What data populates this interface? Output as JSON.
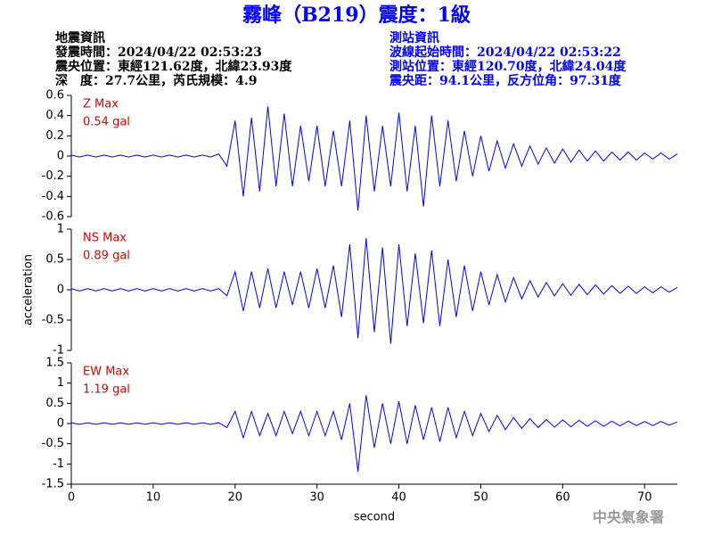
{
  "header": {
    "title": "霧峰（B219）震度：1級",
    "left": [
      "地震資訊",
      "發震時間：2024/04/22 02:53:23",
      "震央位置：東經121.62度，北緯23.93度",
      "深　度：27.7公里，芮氏規模：4.9"
    ],
    "right": [
      "測站資訊",
      "波線起始時間：2024/04/22 02:53:22",
      "測站位置：東經120.70度，北緯24.04度",
      "震央距：94.1公里，反方位角：97.31度"
    ],
    "footer": "中央氣象署"
  },
  "chart_data": [
    {
      "type": "line",
      "name": "Z Max",
      "annotation": "0.54 gal",
      "color": "#0000ff",
      "x": [
        0,
        1,
        2,
        3,
        4,
        5,
        6,
        7,
        8,
        9,
        10,
        11,
        12,
        13,
        14,
        15,
        16,
        17,
        18,
        19,
        20,
        21,
        22,
        23,
        24,
        25,
        26,
        27,
        28,
        29,
        30,
        31,
        32,
        33,
        34,
        35,
        36,
        37,
        38,
        39,
        40,
        41,
        42,
        43,
        44,
        45,
        46,
        47,
        48,
        49,
        50,
        51,
        52,
        53,
        54,
        55,
        56,
        57,
        58,
        59,
        60,
        61,
        62,
        63,
        64,
        65,
        66,
        67,
        68,
        69,
        70,
        71,
        72,
        73,
        74
      ],
      "values": [
        0.01,
        -0.01,
        0.01,
        -0.01,
        0.01,
        -0.01,
        0.01,
        -0.01,
        0.01,
        -0.01,
        0.01,
        -0.01,
        0.01,
        -0.01,
        0.01,
        -0.01,
        0.01,
        -0.01,
        0.02,
        -0.1,
        0.35,
        -0.4,
        0.38,
        -0.35,
        0.49,
        -0.3,
        0.42,
        -0.3,
        0.3,
        -0.25,
        0.3,
        -0.3,
        0.25,
        -0.3,
        0.35,
        -0.54,
        0.4,
        -0.35,
        0.3,
        -0.3,
        0.43,
        -0.35,
        0.3,
        -0.5,
        0.4,
        -0.3,
        0.35,
        -0.25,
        0.25,
        -0.2,
        0.2,
        -0.15,
        0.15,
        -0.12,
        0.12,
        -0.1,
        0.1,
        -0.08,
        0.08,
        -0.07,
        0.07,
        -0.06,
        0.06,
        -0.05,
        0.05,
        -0.05,
        0.04,
        -0.04,
        0.04,
        -0.04,
        0.03,
        -0.03,
        0.03,
        -0.03,
        0.02
      ],
      "xlim": [
        0,
        74
      ],
      "ylim": [
        -0.6,
        0.6
      ],
      "yticks": [
        -0.6,
        -0.4,
        -0.2,
        0,
        0.2,
        0.4,
        0.6
      ]
    },
    {
      "type": "line",
      "name": "NS Max",
      "annotation": "0.89 gal",
      "color": "#0000ff",
      "ylabel": "acceleration",
      "x": [
        0,
        1,
        2,
        3,
        4,
        5,
        6,
        7,
        8,
        9,
        10,
        11,
        12,
        13,
        14,
        15,
        16,
        17,
        18,
        19,
        20,
        21,
        22,
        23,
        24,
        25,
        26,
        27,
        28,
        29,
        30,
        31,
        32,
        33,
        34,
        35,
        36,
        37,
        38,
        39,
        40,
        41,
        42,
        43,
        44,
        45,
        46,
        47,
        48,
        49,
        50,
        51,
        52,
        53,
        54,
        55,
        56,
        57,
        58,
        59,
        60,
        61,
        62,
        63,
        64,
        65,
        66,
        67,
        68,
        69,
        70,
        71,
        72,
        73,
        74
      ],
      "values": [
        0.02,
        -0.02,
        0.02,
        -0.02,
        0.02,
        -0.02,
        0.02,
        -0.02,
        0.02,
        -0.02,
        0.02,
        -0.02,
        0.02,
        -0.02,
        0.02,
        -0.02,
        0.02,
        -0.02,
        0.02,
        -0.1,
        0.3,
        -0.35,
        0.3,
        -0.3,
        0.35,
        -0.3,
        0.3,
        -0.25,
        0.3,
        -0.3,
        0.35,
        -0.3,
        0.4,
        -0.45,
        0.75,
        -0.8,
        0.85,
        -0.7,
        0.7,
        -0.89,
        0.75,
        -0.6,
        0.6,
        -0.55,
        0.65,
        -0.6,
        0.5,
        -0.45,
        0.4,
        -0.35,
        0.3,
        -0.25,
        0.25,
        -0.2,
        0.2,
        -0.15,
        0.15,
        -0.12,
        0.12,
        -0.1,
        0.1,
        -0.09,
        0.09,
        -0.08,
        0.08,
        -0.07,
        0.07,
        -0.06,
        0.06,
        -0.06,
        0.05,
        -0.05,
        0.05,
        -0.04,
        0.04
      ],
      "xlim": [
        0,
        74
      ],
      "ylim": [
        -1,
        1
      ],
      "yticks": [
        -1,
        -0.5,
        0,
        0.5,
        1
      ]
    },
    {
      "type": "line",
      "name": "EW Max",
      "annotation": "1.19 gal",
      "color": "#0000ff",
      "xlabel": "second",
      "x": [
        0,
        1,
        2,
        3,
        4,
        5,
        6,
        7,
        8,
        9,
        10,
        11,
        12,
        13,
        14,
        15,
        16,
        17,
        18,
        19,
        20,
        21,
        22,
        23,
        24,
        25,
        26,
        27,
        28,
        29,
        30,
        31,
        32,
        33,
        34,
        35,
        36,
        37,
        38,
        39,
        40,
        41,
        42,
        43,
        44,
        45,
        46,
        47,
        48,
        49,
        50,
        51,
        52,
        53,
        54,
        55,
        56,
        57,
        58,
        59,
        60,
        61,
        62,
        63,
        64,
        65,
        66,
        67,
        68,
        69,
        70,
        71,
        72,
        73,
        74
      ],
      "values": [
        0.02,
        -0.02,
        0.02,
        -0.02,
        0.02,
        -0.02,
        0.02,
        -0.02,
        0.02,
        -0.02,
        0.02,
        -0.02,
        0.02,
        -0.02,
        0.02,
        -0.02,
        0.02,
        -0.02,
        0.02,
        -0.1,
        0.3,
        -0.35,
        0.3,
        -0.3,
        0.25,
        -0.3,
        0.3,
        -0.25,
        0.3,
        -0.3,
        0.3,
        -0.3,
        0.3,
        -0.4,
        0.5,
        -1.19,
        0.7,
        -0.6,
        0.5,
        -0.5,
        0.55,
        -0.5,
        0.45,
        -0.4,
        0.4,
        -0.45,
        0.4,
        -0.35,
        0.3,
        -0.3,
        0.25,
        -0.2,
        0.2,
        -0.15,
        0.15,
        -0.12,
        0.12,
        -0.1,
        0.1,
        -0.09,
        0.09,
        -0.08,
        0.08,
        -0.07,
        0.07,
        -0.07,
        0.06,
        -0.06,
        0.06,
        -0.05,
        0.05,
        -0.05,
        0.05,
        -0.04,
        0.04
      ],
      "xlim": [
        0,
        74
      ],
      "ylim": [
        -1.5,
        1.5
      ],
      "yticks": [
        -1.5,
        -1,
        -0.5,
        0,
        0.5,
        1,
        1.5
      ],
      "xticks": [
        0,
        10,
        20,
        30,
        40,
        50,
        60,
        70
      ]
    }
  ]
}
